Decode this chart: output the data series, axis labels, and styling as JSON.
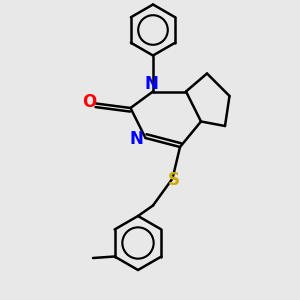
{
  "bg_color": "#e8e8e8",
  "bond_color": "#000000",
  "atom_colors": {
    "N": "#0000ff",
    "O": "#ff0000",
    "S": "#ccaa00",
    "C": "#000000"
  },
  "bond_width": 1.8,
  "figsize": [
    3.0,
    3.0
  ],
  "dpi": 100,
  "xlim": [
    0,
    10
  ],
  "ylim": [
    0,
    10
  ]
}
